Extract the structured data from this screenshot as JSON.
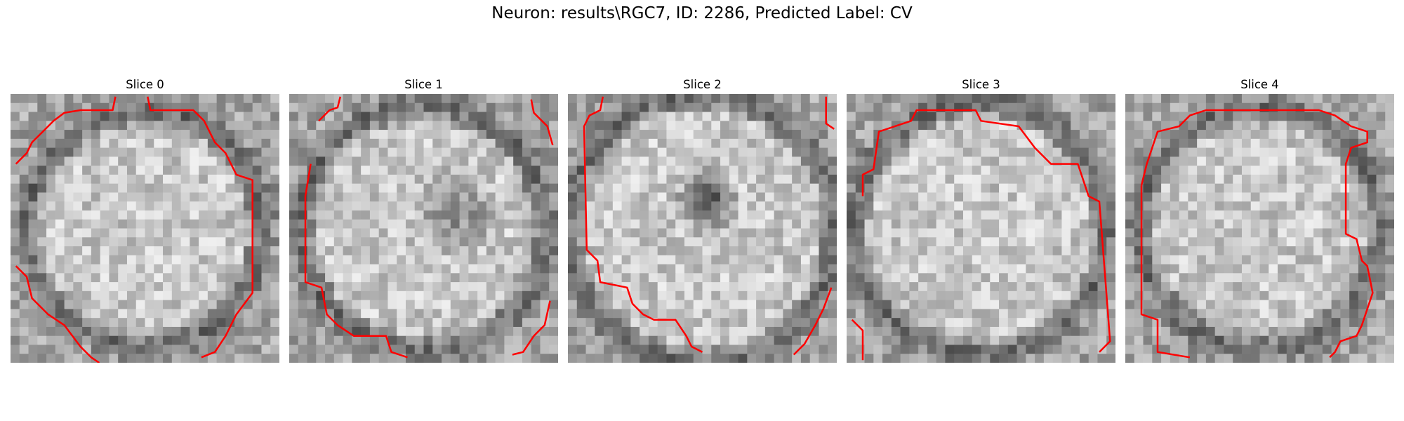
{
  "figure": {
    "title": "Neuron: results\\RGC7, ID: 2286, Predicted Label: CV"
  },
  "grid_size": 30,
  "contour_color": "#ff0000",
  "panels": [
    {
      "title": "Slice 0",
      "seed": 11,
      "dark_blob": null,
      "ring": 0.44
    },
    {
      "title": "Slice 1",
      "seed": 23,
      "dark_blob": [
        0.62,
        0.45,
        0.18
      ],
      "ring": 0.46
    },
    {
      "title": "Slice 2",
      "seed": 37,
      "dark_blob": [
        0.52,
        0.4,
        0.13
      ],
      "ring": 0.5
    },
    {
      "title": "Slice 3",
      "seed": 49,
      "dark_blob": null,
      "ring": 0.47
    },
    {
      "title": "Slice 4",
      "seed": 61,
      "dark_blob": null,
      "ring": 0.45
    }
  ]
}
